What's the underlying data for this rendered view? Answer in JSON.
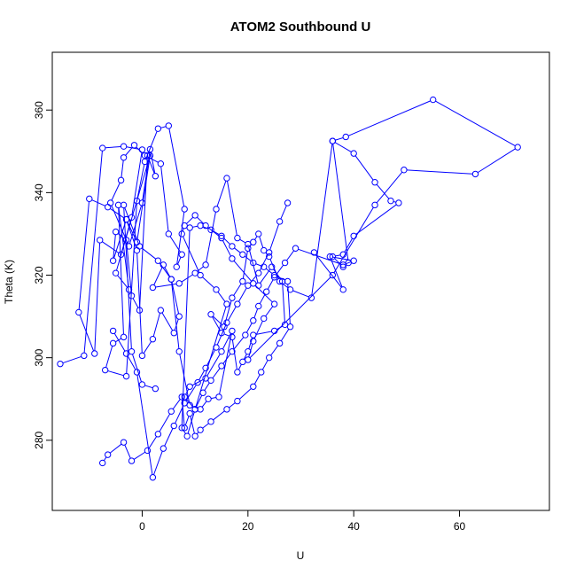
{
  "chart_data": {
    "type": "line",
    "title": "ATOM2 Southbound U",
    "xlabel": "U",
    "ylabel": "Theta (K)",
    "xlim": [
      -17,
      77
    ],
    "ylim": [
      263,
      374
    ],
    "xticks": [
      0,
      20,
      40,
      60
    ],
    "yticks": [
      280,
      300,
      320,
      340,
      360
    ],
    "grid": false,
    "legend": "none",
    "series_color": "#0000ff",
    "marker": "open-circle",
    "series": [
      {
        "x": [
          -15.5,
          -11,
          -7.5,
          -3.5,
          0,
          -2,
          -4,
          -8,
          -9,
          -12,
          -10,
          -6.5,
          -3,
          -1,
          1.5,
          -5,
          -2.5,
          -4.5,
          -3.5,
          -5.5,
          -7,
          -3,
          -1,
          0.5,
          3,
          5,
          8,
          6.5,
          7.5,
          5,
          3.5,
          0.5,
          -1.5,
          -3.5,
          -4,
          -6,
          -2.5,
          0,
          1.5,
          2.5,
          1,
          -0.5,
          -2,
          -3,
          -5,
          -5.5,
          -3,
          -1,
          0,
          2,
          3.5,
          6,
          7,
          5.5,
          4,
          2,
          7,
          10,
          12,
          14,
          16,
          18,
          20,
          22,
          24.5,
          26.5,
          27,
          25,
          21,
          20,
          19,
          18,
          17,
          15,
          13,
          15.5,
          17,
          19,
          20,
          21,
          22,
          23,
          24,
          26,
          28,
          32,
          36,
          39,
          38,
          36,
          38,
          40,
          48.5,
          47,
          44,
          40,
          36,
          38.5,
          55,
          71,
          63,
          49.5,
          44,
          36,
          20,
          21,
          23,
          25,
          21,
          17,
          15,
          12,
          10,
          8,
          7.5,
          11,
          14,
          16,
          10,
          8,
          9,
          12,
          15,
          17,
          14.5,
          12.5,
          11,
          9,
          7,
          5.5,
          3,
          -0.5,
          -3.5,
          -2,
          0,
          2.5
        ],
        "y": [
          298.5,
          300.5,
          350.8,
          351.2,
          350.4,
          334,
          325,
          328.5,
          301,
          311,
          338.5,
          336.5,
          333.5,
          328,
          349,
          320.5,
          316.5,
          337,
          305,
          303.5,
          297,
          295.5,
          338,
          347.5,
          355.5,
          356.2,
          336,
          322,
          325,
          330,
          347,
          349,
          351.5,
          348.5,
          343,
          337.5,
          327,
          337.5,
          350.5,
          344,
          349,
          311.5,
          315,
          328.5,
          330.5,
          323.5,
          333.5,
          326,
          300.5,
          304.5,
          311.5,
          306,
          310,
          319,
          322.5,
          317,
          318,
          320.5,
          322.5,
          336,
          343.5,
          329,
          327.5,
          317.5,
          322,
          318.5,
          308,
          306.5,
          305.5,
          301.5,
          299,
          296.5,
          305,
          306,
          310.5,
          307.5,
          314.5,
          318.5,
          326.5,
          328,
          330,
          326,
          324.5,
          318.5,
          316.5,
          314.5,
          352.5,
          323,
          322,
          324.5,
          325,
          329.5,
          337.5,
          338,
          342.5,
          349.5,
          352.5,
          353.5,
          362.5,
          351,
          344.5,
          345.5,
          337,
          320,
          299.5,
          304,
          309.5,
          313,
          318,
          324,
          329,
          332,
          334.5,
          332,
          330,
          320,
          316.5,
          313,
          287.5,
          290.5,
          293,
          295,
          301.5,
          306.5,
          290.5,
          290,
          287.5,
          288.5,
          301.5,
          319,
          323.5,
          327,
          337,
          301.5,
          293.5,
          292.5
        ]
      },
      {
        "x": [
          -7.5,
          -6.5,
          -3.5,
          -2,
          1,
          3,
          5.5,
          7.5,
          8,
          9,
          10,
          11,
          13,
          16,
          18,
          21,
          22.5,
          24,
          26,
          28,
          27.5,
          25,
          23,
          21,
          19,
          17,
          15,
          13,
          11,
          9,
          7.5,
          8.5,
          10,
          11.5,
          13,
          15,
          17,
          19.5,
          21,
          22,
          23.5,
          25,
          27,
          29,
          38,
          40,
          35.5,
          38,
          32.5
        ],
        "y": [
          274.5,
          276.5,
          279.5,
          275,
          277.5,
          281.5,
          287,
          290.5,
          283,
          286.5,
          281,
          282.5,
          284.5,
          287.5,
          289.5,
          293,
          296.5,
          300,
          303.5,
          307.5,
          318.5,
          320,
          322,
          323,
          325,
          327,
          329.5,
          331,
          332,
          331.5,
          283,
          281,
          287.5,
          291.5,
          294.5,
          298,
          301.5,
          305.5,
          309,
          312.5,
          316,
          319.5,
          323,
          326.5,
          322.5,
          323.5,
          324.5,
          316.5,
          325.5
        ]
      },
      {
        "x": [
          -5.5,
          -3,
          -1,
          2,
          4,
          6,
          8,
          10.5,
          12,
          14,
          16,
          18,
          20,
          22,
          24,
          26,
          27.5
        ],
        "y": [
          306.5,
          301,
          296.5,
          271,
          278,
          283.5,
          289,
          294,
          297.5,
          302.5,
          308.5,
          313,
          317.5,
          320.5,
          325.5,
          333,
          337.5
        ]
      }
    ]
  }
}
